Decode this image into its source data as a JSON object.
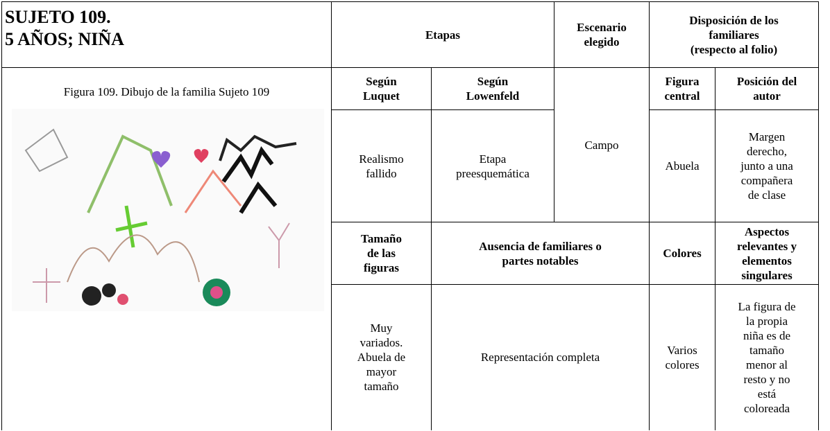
{
  "subject": {
    "title": [
      "SUJETO 109.",
      "5 AÑOS; NIÑA"
    ]
  },
  "figure": {
    "caption": "Figura 109. Dibujo de la familia Sujeto 109"
  },
  "table": {
    "etapas": [
      "Etapas"
    ],
    "escenario": [
      "Escenario",
      "elegido"
    ],
    "disposicion": [
      "Disposición de los",
      "familiares",
      "(respecto al folio)"
    ],
    "luquet": [
      "Según",
      "Luquet"
    ],
    "lowenfeld": [
      "Según",
      "Lowenfeld"
    ],
    "escenario_value": [
      "Campo"
    ],
    "figura_central": [
      "Figura",
      "central"
    ],
    "posicion_autor": [
      "Posición del",
      "autor"
    ],
    "luquet_value": [
      "Realismo",
      "fallido"
    ],
    "lowenfeld_value": [
      "Etapa",
      "preesquemática"
    ],
    "figura_central_value": [
      "Abuela"
    ],
    "posicion_autor_value": [
      "Margen",
      "derecho,",
      "junto a una",
      "compañera",
      "de clase"
    ],
    "tamano": [
      "Tamaño",
      "de las",
      "figuras"
    ],
    "ausencia": [
      "Ausencia de familiares o",
      "partes notables"
    ],
    "colores": [
      "Colores"
    ],
    "aspectos": [
      "Aspectos",
      "relevantes y",
      "elementos",
      "singulares"
    ],
    "tamano_value": [
      "Muy",
      "variados.",
      "Abuela de",
      "mayor",
      "tamaño"
    ],
    "ausencia_value": [
      "Representación completa"
    ],
    "colores_value": [
      "Varios",
      "colores"
    ],
    "aspectos_value": [
      "La figura de",
      "la propia",
      "niña es de",
      "tamaño",
      "menor al",
      "resto y no",
      "está",
      "coloreada"
    ]
  }
}
